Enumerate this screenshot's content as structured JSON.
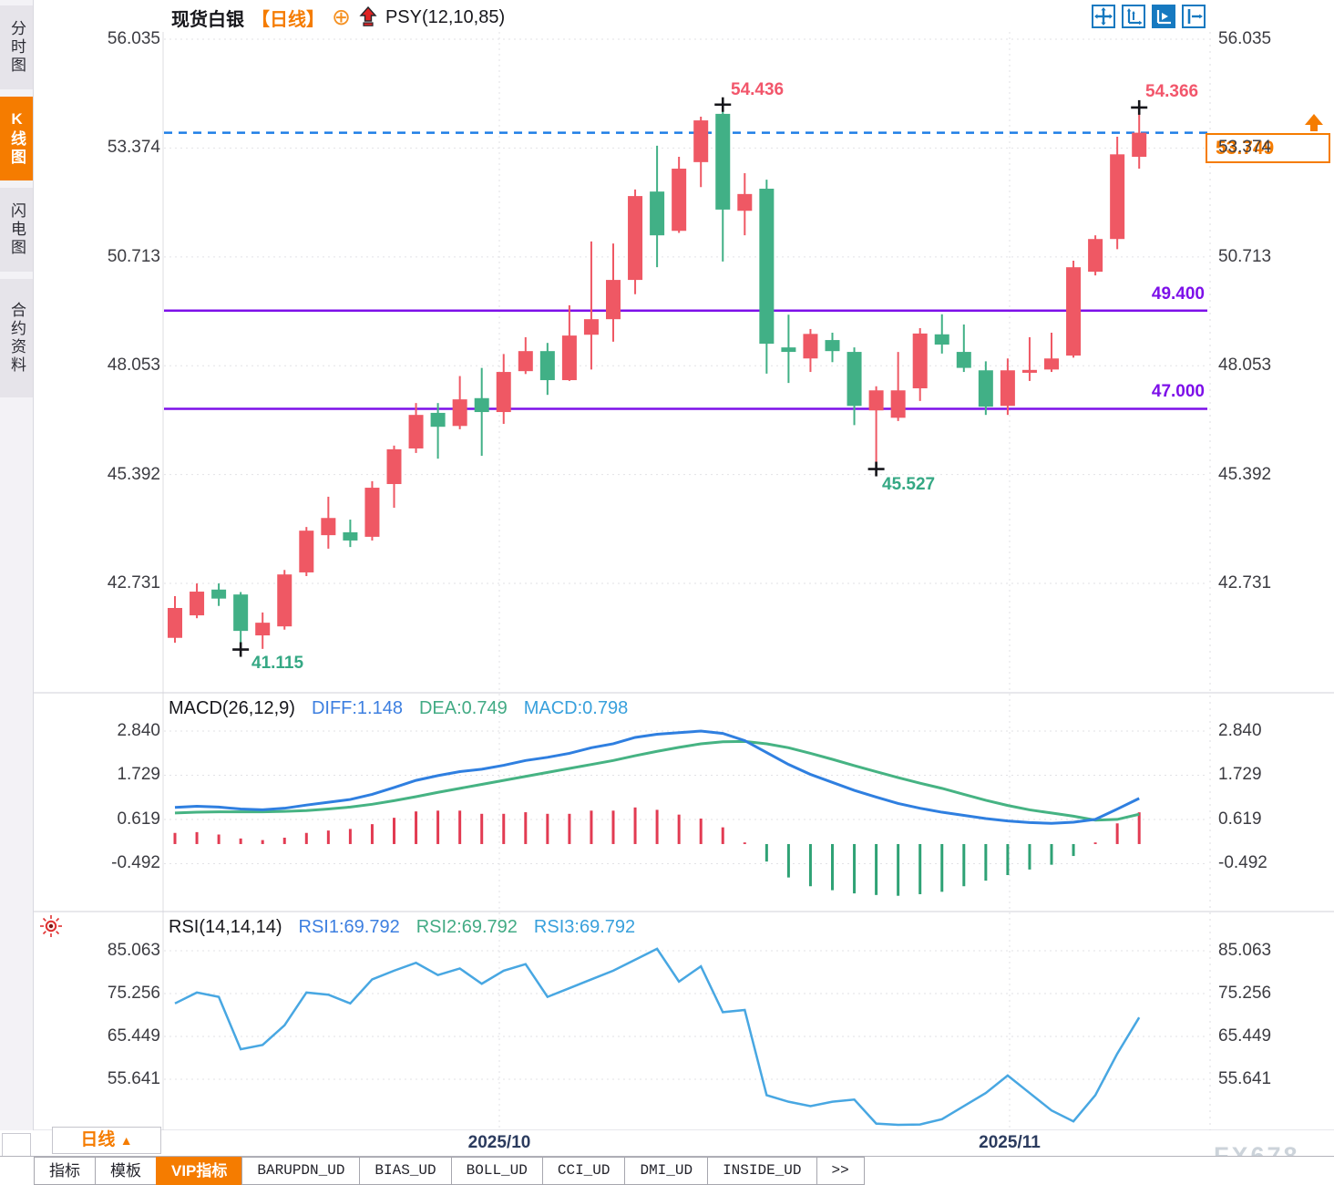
{
  "sidebar": {
    "tabs": [
      {
        "label": "分时图",
        "active": false
      },
      {
        "label": "K线图",
        "active": true
      },
      {
        "label": "闪电图",
        "active": false
      },
      {
        "label": "合约资料",
        "active": false
      }
    ]
  },
  "header": {
    "symbol": "现货白银",
    "period": "【日线】",
    "crosshair_icon": "⊕",
    "indicator": "PSY(12,10,85)"
  },
  "toolbar": {
    "icons": [
      "move-chart-icon",
      "fit-scale-icon",
      "auto-follow-icon",
      "pan-to-latest-icon"
    ]
  },
  "bottom": {
    "period_label": "日线",
    "period_arrow": "▲",
    "tabs": [
      {
        "label": "指标",
        "mono": false,
        "active": false
      },
      {
        "label": "模板",
        "mono": false,
        "active": false
      },
      {
        "label": "VIP指标",
        "mono": false,
        "active": true
      },
      {
        "label": "BARUPDN_UD",
        "mono": true,
        "active": false
      },
      {
        "label": "BIAS_UD",
        "mono": true,
        "active": false
      },
      {
        "label": "BOLL_UD",
        "mono": true,
        "active": false
      },
      {
        "label": "CCI_UD",
        "mono": true,
        "active": false
      },
      {
        "label": "DMI_UD",
        "mono": true,
        "active": false
      },
      {
        "label": "INSIDE_UD",
        "mono": true,
        "active": false
      },
      {
        "label": ">>",
        "mono": true,
        "active": false
      }
    ]
  },
  "watermark": "FX678",
  "colors": {
    "up": "#ef5864",
    "down": "#41b086",
    "accent": "#f57c00",
    "level": "#7d10e9",
    "current_line": "#1e7ee6",
    "diff": "#2f7fe0",
    "dea": "#46b383",
    "hist_pos": "#e23b52",
    "hist_neg": "#2fa275",
    "rsi": "#48a7e2"
  },
  "chart_data": {
    "type": "candlestick",
    "title": "现货白银 日线",
    "price_axis_ticks": [
      "56.035",
      "53.374",
      "50.713",
      "48.053",
      "45.392",
      "42.731"
    ],
    "x_axis_labels": [
      "2025/10",
      "2025/11"
    ],
    "candles": [
      [
        41.4,
        42.42,
        41.28,
        42.13
      ],
      [
        41.95,
        42.73,
        41.88,
        42.53
      ],
      [
        42.58,
        42.73,
        42.18,
        42.36
      ],
      [
        42.46,
        42.52,
        41.115,
        41.57
      ],
      [
        41.46,
        42.02,
        41.13,
        41.77
      ],
      [
        41.68,
        43.06,
        41.6,
        42.95
      ],
      [
        43.0,
        44.11,
        42.91,
        44.02
      ],
      [
        43.91,
        44.85,
        43.58,
        44.33
      ],
      [
        43.98,
        44.29,
        43.62,
        43.78
      ],
      [
        43.87,
        45.23,
        43.78,
        45.07
      ],
      [
        45.16,
        46.1,
        44.58,
        46.01
      ],
      [
        46.03,
        47.14,
        45.92,
        46.85
      ],
      [
        46.9,
        47.14,
        45.78,
        46.56
      ],
      [
        46.58,
        47.8,
        46.5,
        47.23
      ],
      [
        47.26,
        48.0,
        45.85,
        46.92
      ],
      [
        46.92,
        48.34,
        46.63,
        47.9
      ],
      [
        47.92,
        48.75,
        47.85,
        48.41
      ],
      [
        48.41,
        48.61,
        47.34,
        47.7
      ],
      [
        47.7,
        49.53,
        47.68,
        48.79
      ],
      [
        48.81,
        51.09,
        47.96,
        49.19
      ],
      [
        49.19,
        51.04,
        48.64,
        50.15
      ],
      [
        50.15,
        52.36,
        49.8,
        52.2
      ],
      [
        52.31,
        53.43,
        50.46,
        51.24
      ],
      [
        51.35,
        53.16,
        51.3,
        52.87
      ],
      [
        53.03,
        54.14,
        52.42,
        54.05
      ],
      [
        54.21,
        54.436,
        50.6,
        51.87
      ],
      [
        51.84,
        52.76,
        51.24,
        52.25
      ],
      [
        52.38,
        52.6,
        47.86,
        48.59
      ],
      [
        48.5,
        49.3,
        47.63,
        48.39
      ],
      [
        48.23,
        48.95,
        47.9,
        48.83
      ],
      [
        48.68,
        48.86,
        48.14,
        48.41
      ],
      [
        48.39,
        48.5,
        46.6,
        47.07
      ],
      [
        46.96,
        47.55,
        45.527,
        47.45
      ],
      [
        46.78,
        48.39,
        46.7,
        47.45
      ],
      [
        47.5,
        48.97,
        47.19,
        48.84
      ],
      [
        48.82,
        49.31,
        48.35,
        48.57
      ],
      [
        48.39,
        49.06,
        47.9,
        48.0
      ],
      [
        47.94,
        48.16,
        46.85,
        47.05
      ],
      [
        47.07,
        48.23,
        46.85,
        47.94
      ],
      [
        47.88,
        48.75,
        47.68,
        47.95
      ],
      [
        47.96,
        48.86,
        47.9,
        48.23
      ],
      [
        48.3,
        50.62,
        48.25,
        50.46
      ],
      [
        50.35,
        51.24,
        50.26,
        51.15
      ],
      [
        51.15,
        53.65,
        50.9,
        53.22
      ],
      [
        53.16,
        54.366,
        52.87,
        53.749
      ]
    ],
    "levels": [
      {
        "value": 49.4,
        "label": "49.400"
      },
      {
        "value": 47.0,
        "label": "47.000"
      }
    ],
    "current_price": {
      "value": 53.749,
      "label": "53.749"
    },
    "extremes": [
      {
        "candle": 3,
        "type": "low",
        "label": "41.115"
      },
      {
        "candle": 25,
        "type": "high",
        "label": "54.436"
      },
      {
        "candle": 32,
        "type": "low",
        "label": "45.527"
      },
      {
        "candle": 44,
        "type": "high",
        "label": "54.366"
      }
    ],
    "macd": {
      "title": "MACD(26,12,9)",
      "diff_label": "DIFF:1.148",
      "dea_label": "DEA:0.749",
      "macd_label": "MACD:0.798",
      "axis_ticks": [
        "2.840",
        "1.729",
        "0.619",
        "-0.492"
      ],
      "diff": [
        0.92,
        0.95,
        0.93,
        0.88,
        0.86,
        0.9,
        0.98,
        1.05,
        1.12,
        1.25,
        1.42,
        1.6,
        1.72,
        1.82,
        1.88,
        1.98,
        2.1,
        2.18,
        2.28,
        2.42,
        2.52,
        2.68,
        2.76,
        2.8,
        2.84,
        2.78,
        2.6,
        2.3,
        2.0,
        1.75,
        1.55,
        1.35,
        1.18,
        1.02,
        0.9,
        0.8,
        0.72,
        0.64,
        0.58,
        0.54,
        0.52,
        0.55,
        0.62,
        0.88,
        1.148
      ],
      "dea": [
        0.78,
        0.8,
        0.81,
        0.81,
        0.81,
        0.82,
        0.84,
        0.88,
        0.93,
        1.0,
        1.09,
        1.19,
        1.3,
        1.4,
        1.5,
        1.6,
        1.7,
        1.8,
        1.9,
        2.0,
        2.1,
        2.22,
        2.33,
        2.43,
        2.52,
        2.57,
        2.58,
        2.52,
        2.42,
        2.28,
        2.13,
        1.97,
        1.82,
        1.67,
        1.53,
        1.4,
        1.25,
        1.1,
        0.97,
        0.86,
        0.78,
        0.7,
        0.6,
        0.62,
        0.749
      ]
    },
    "rsi": {
      "title": "RSI(14,14,14)",
      "rsi1_label": "RSI1:69.792",
      "rsi2_label": "RSI2:69.792",
      "rsi3_label": "RSI3:69.792",
      "axis_ticks": [
        "85.063",
        "75.256",
        "65.449",
        "55.641"
      ],
      "values": [
        73,
        75.5,
        74.5,
        62.5,
        63.5,
        68,
        75.5,
        75,
        73,
        78.5,
        80.5,
        82.3,
        79.5,
        81,
        77.5,
        80.5,
        82,
        74.5,
        76.5,
        78.5,
        80.5,
        83,
        85.5,
        78,
        81.5,
        71,
        71.5,
        52,
        50.5,
        49.5,
        50.5,
        51,
        45.5,
        45.2,
        45.3,
        46.5,
        49.5,
        52.5,
        56.5,
        52.5,
        48.5,
        46,
        52,
        61.5,
        69.792
      ]
    }
  }
}
